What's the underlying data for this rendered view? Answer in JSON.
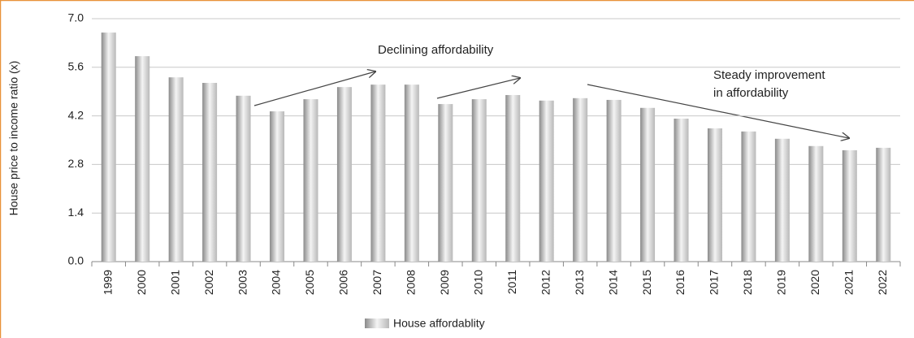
{
  "chart_data": {
    "type": "bar",
    "y_label": "House price to income ratio (x)",
    "categories": [
      "1999",
      "2000",
      "2001",
      "2002",
      "2003",
      "2004",
      "2005",
      "2006",
      "2007",
      "2008",
      "2009",
      "2010",
      "2011",
      "2012",
      "2013",
      "2014",
      "2015",
      "2016",
      "2017",
      "2018",
      "2019",
      "2020",
      "2021",
      "2022"
    ],
    "series": [
      {
        "name": "House affordablity",
        "color": "#b8b8b8",
        "values": [
          6.6,
          5.92,
          5.31,
          5.15,
          4.78,
          4.33,
          4.68,
          5.03,
          5.1,
          5.1,
          4.54,
          4.68,
          4.8,
          4.64,
          4.71,
          4.66,
          4.43,
          4.12,
          3.84,
          3.75,
          3.54,
          3.33,
          3.21,
          3.28
        ]
      }
    ],
    "ylim": [
      0,
      7
    ],
    "yticks": [
      {
        "value": 0,
        "label": "0.0"
      },
      1.4,
      2.8,
      4.2,
      5.6,
      {
        "value": 7,
        "label": "7.0"
      }
    ],
    "grid": true,
    "annotations": [
      "Declining affordability",
      "Steady improvement",
      "in affordability"
    ]
  }
}
